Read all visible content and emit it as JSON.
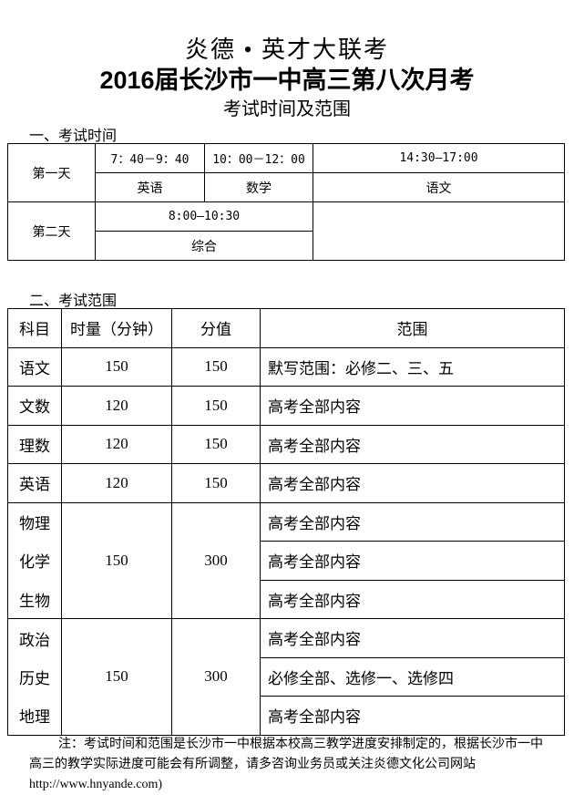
{
  "header": {
    "org": "炎德 • 英才大联考",
    "title": "2016届长沙市一中高三第八次月考",
    "subtitle": "考试时间及范围"
  },
  "section1": {
    "heading": "一、考试时间",
    "day1": {
      "label": "第一天",
      "slots": [
        {
          "time": "7：40－9：40",
          "subject": "英语"
        },
        {
          "time": "10：00－12：00",
          "subject": "数学"
        },
        {
          "time": "14:30—17:00",
          "subject": "语文"
        }
      ]
    },
    "day2": {
      "label": "第二天",
      "slots": [
        {
          "time": "8:00—10:30",
          "subject": "综合"
        }
      ]
    }
  },
  "section2": {
    "heading": "二、考试范围",
    "headers": [
      "科目",
      "时量（分钟）",
      "分值",
      "范围"
    ],
    "rows": [
      {
        "subject": "语文",
        "time": "150",
        "score": "150",
        "scope": "默写范围：必修二、三、五"
      },
      {
        "subject": "文数",
        "time": "120",
        "score": "150",
        "scope": "高考全部内容"
      },
      {
        "subject": "理数",
        "time": "120",
        "score": "150",
        "scope": "高考全部内容"
      },
      {
        "subject": "英语",
        "time": "120",
        "score": "150",
        "scope": "高考全部内容"
      }
    ],
    "science": {
      "time": "150",
      "score": "300",
      "rows": [
        {
          "subject": "物理",
          "scope": "高考全部内容"
        },
        {
          "subject": "化学",
          "scope": "高考全部内容"
        },
        {
          "subject": "生物",
          "scope": "高考全部内容"
        }
      ]
    },
    "arts": {
      "time": "150",
      "score": "300",
      "rows": [
        {
          "subject": "政治",
          "scope": "高考全部内容"
        },
        {
          "subject": "历史",
          "scope": "必修全部、选修一、选修四"
        },
        {
          "subject": "地理",
          "scope": "高考全部内容"
        }
      ]
    }
  },
  "note": "注：考试时间和范围是长沙市一中根据本校高三教学进度安排制定的，根据长沙市一中高三的教学实际进度可能会有所调整，请多咨询业务员或关注炎德文化公司网站http://www.hnyande.com)"
}
